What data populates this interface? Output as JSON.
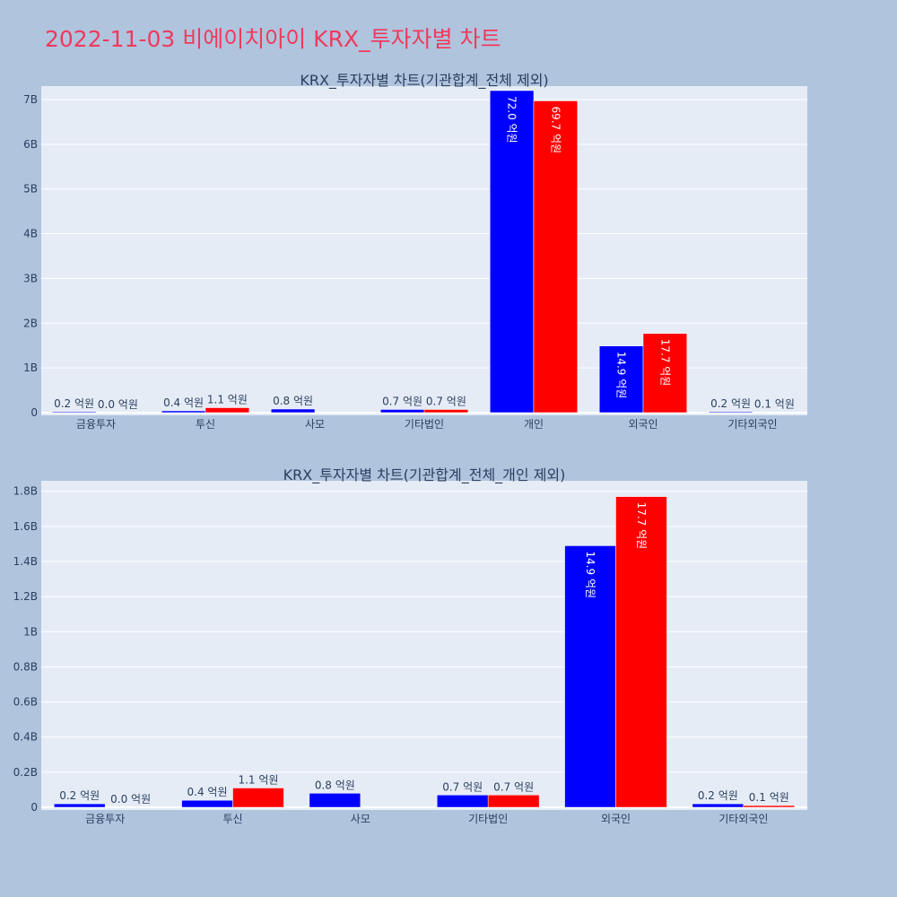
{
  "page": {
    "title": "2022-11-03 비에이치아이 KRX_투자자별 차트",
    "background_color": "#b0c4de",
    "title_color": "#ef3a5d"
  },
  "chart_data": [
    {
      "type": "bar",
      "title": "KRX_투자자별 차트(기관합계_전체 제외)",
      "categories": [
        "금융투자",
        "투신",
        "사모",
        "기타법인",
        "개인",
        "외국인",
        "기타외국인"
      ],
      "series": [
        {
          "color": "#0000ff",
          "values": [
            20000000,
            40000000,
            80000000,
            70000000,
            7200000000,
            1490000000,
            20000000
          ],
          "labels": [
            "0.2 억원",
            "0.4 억원",
            "0.8 억원",
            "0.7 억원",
            "72.0 억원",
            "14.9 억원",
            "0.2 억원"
          ]
        },
        {
          "color": "#ff0000",
          "values": [
            0,
            110000000,
            0,
            70000000,
            6970000000,
            1770000000,
            10000000
          ],
          "labels": [
            "0.0 억원",
            "1.1 억원",
            "",
            "0.7 억원",
            "69.7 억원",
            "17.7 억원",
            "0.1 억원"
          ]
        }
      ],
      "ylim": [
        0,
        7300000000
      ],
      "yticks": [
        0,
        1000000000,
        2000000000,
        3000000000,
        4000000000,
        5000000000,
        6000000000,
        7000000000
      ],
      "ytick_labels": [
        "0",
        "1B",
        "2B",
        "3B",
        "4B",
        "5B",
        "6B",
        "7B"
      ],
      "grid": true,
      "plot_bg": "#e5ecf6"
    },
    {
      "type": "bar",
      "title": "KRX_투자자별 차트(기관합계_전체_개인 제외)",
      "categories": [
        "금융투자",
        "투신",
        "사모",
        "기타법인",
        "외국인",
        "기타외국인"
      ],
      "series": [
        {
          "color": "#0000ff",
          "values": [
            20000000,
            40000000,
            80000000,
            70000000,
            1490000000,
            20000000
          ],
          "labels": [
            "0.2 억원",
            "0.4 억원",
            "0.8 억원",
            "0.7 억원",
            "14.9 억원",
            "0.2 억원"
          ]
        },
        {
          "color": "#ff0000",
          "values": [
            0,
            110000000,
            0,
            70000000,
            1770000000,
            10000000
          ],
          "labels": [
            "0.0 억원",
            "1.1 억원",
            "",
            "0.7 억원",
            "17.7 억원",
            "0.1 억원"
          ]
        }
      ],
      "ylim": [
        0,
        1860000000
      ],
      "yticks": [
        0,
        200000000,
        400000000,
        600000000,
        800000000,
        1000000000,
        1200000000,
        1400000000,
        1600000000,
        1800000000
      ],
      "ytick_labels": [
        "0",
        "0.2B",
        "0.4B",
        "0.6B",
        "0.8B",
        "1B",
        "1.2B",
        "1.4B",
        "1.6B",
        "1.8B"
      ],
      "grid": true,
      "plot_bg": "#e5ecf6"
    }
  ]
}
